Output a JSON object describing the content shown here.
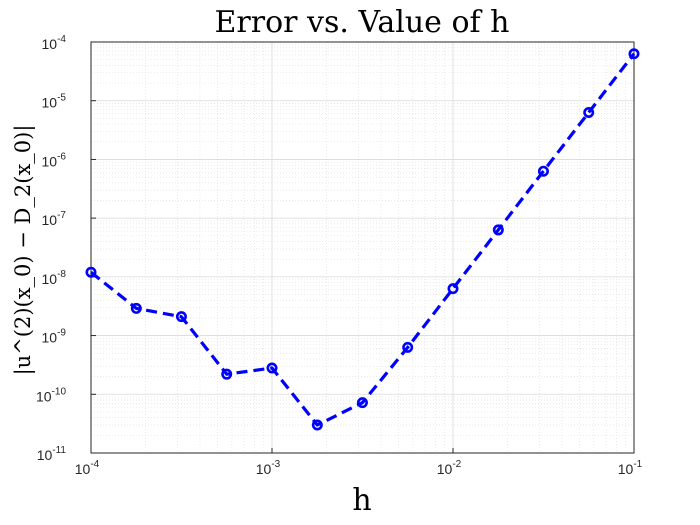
{
  "chart_data": {
    "type": "line",
    "title": "Error vs. Value of h",
    "xlabel": "h",
    "ylabel": "|u^(2)(x_0) − D_2(x_0)|",
    "xscale": "log",
    "yscale": "log",
    "xlim": [
      0.0001,
      0.1
    ],
    "ylim": [
      1e-11,
      0.0001
    ],
    "grid": true,
    "minor_grid": true,
    "x_ticks": [
      {
        "value": 0.0001,
        "base": "10",
        "exp": "-4"
      },
      {
        "value": 0.001,
        "base": "10",
        "exp": "-3"
      },
      {
        "value": 0.01,
        "base": "10",
        "exp": "-2"
      },
      {
        "value": 0.1,
        "base": "10",
        "exp": "-1"
      }
    ],
    "y_ticks": [
      {
        "value": 1e-11,
        "base": "10",
        "exp": "-11"
      },
      {
        "value": 1e-10,
        "base": "10",
        "exp": "-10"
      },
      {
        "value": 1e-09,
        "base": "10",
        "exp": "-9"
      },
      {
        "value": 1e-08,
        "base": "10",
        "exp": "-8"
      },
      {
        "value": 1e-07,
        "base": "10",
        "exp": "-7"
      },
      {
        "value": 1e-06,
        "base": "10",
        "exp": "-6"
      },
      {
        "value": 1e-05,
        "base": "10",
        "exp": "-5"
      },
      {
        "value": 0.0001,
        "base": "10",
        "exp": "-4"
      }
    ],
    "series": [
      {
        "color": "#0000ff",
        "line_style": "dashed",
        "marker": "circle",
        "x": [
          0.0001,
          0.000178,
          0.000316,
          0.000562,
          0.001,
          0.00178,
          0.00316,
          0.00562,
          0.01,
          0.0178,
          0.0316,
          0.0562,
          0.1
        ],
        "y": [
          1.2e-08,
          2.9e-09,
          2.1e-09,
          2.2e-10,
          2.8e-10,
          3e-11,
          7.2e-11,
          6.3e-10,
          6.3e-09,
          6.3e-08,
          6.3e-07,
          6.3e-06,
          6.3e-05
        ]
      }
    ]
  }
}
